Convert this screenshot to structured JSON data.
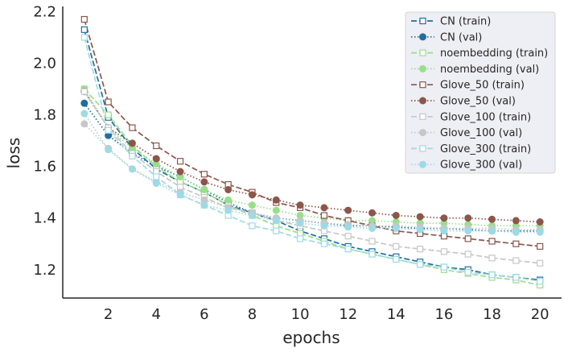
{
  "chart_data": {
    "type": "line",
    "xlabel": "epochs",
    "ylabel": "loss",
    "xlim": [
      0.1,
      20.9
    ],
    "ylim": [
      1.09,
      2.22
    ],
    "xticks": [
      2,
      4,
      6,
      8,
      10,
      12,
      14,
      16,
      18,
      20
    ],
    "yticks": [
      1.2,
      1.4,
      1.6,
      1.8,
      2.0,
      2.2
    ],
    "xtick_labels": [
      "2",
      "4",
      "6",
      "8",
      "10",
      "12",
      "14",
      "16",
      "18",
      "20"
    ],
    "ytick_labels": [
      "1.2",
      "1.4",
      "1.6",
      "1.8",
      "2.0",
      "2.2"
    ],
    "grid": false,
    "legend_position": "top-right",
    "x": [
      1,
      2,
      3,
      4,
      5,
      6,
      7,
      8,
      9,
      10,
      11,
      12,
      13,
      14,
      15,
      16,
      17,
      18,
      19,
      20
    ],
    "series": [
      {
        "name": "CN (train)",
        "color": "#1f6f9f",
        "linestyle": "dashed",
        "marker": "square-open",
        "values": [
          2.13,
          1.79,
          1.67,
          1.59,
          1.54,
          1.5,
          1.45,
          1.42,
          1.39,
          1.35,
          1.32,
          1.29,
          1.27,
          1.25,
          1.23,
          1.21,
          1.2,
          1.18,
          1.17,
          1.16
        ]
      },
      {
        "name": "CN (val)",
        "color": "#1f6f9f",
        "linestyle": "dotted",
        "marker": "circle",
        "values": [
          1.845,
          1.72,
          1.65,
          1.6,
          1.56,
          1.51,
          1.46,
          1.42,
          1.4,
          1.39,
          1.38,
          1.37,
          1.37,
          1.365,
          1.36,
          1.36,
          1.355,
          1.35,
          1.35,
          1.35
        ]
      },
      {
        "name": "noembedding (train)",
        "color": "#98df8a",
        "linestyle": "dashed",
        "marker": "square-open",
        "values": [
          1.9,
          1.8,
          1.68,
          1.6,
          1.54,
          1.5,
          1.45,
          1.41,
          1.37,
          1.34,
          1.31,
          1.28,
          1.26,
          1.24,
          1.22,
          1.2,
          1.185,
          1.17,
          1.16,
          1.14
        ]
      },
      {
        "name": "noembedding (val)",
        "color": "#98df8a",
        "linestyle": "dotted",
        "marker": "circle",
        "values": [
          1.9,
          1.75,
          1.67,
          1.61,
          1.56,
          1.51,
          1.47,
          1.45,
          1.43,
          1.41,
          1.4,
          1.39,
          1.39,
          1.385,
          1.38,
          1.38,
          1.375,
          1.37,
          1.37,
          1.37
        ]
      },
      {
        "name": "Glove_50 (train)",
        "color": "#8c564b",
        "linestyle": "dashed",
        "marker": "square-open",
        "values": [
          2.17,
          1.85,
          1.75,
          1.68,
          1.62,
          1.57,
          1.53,
          1.5,
          1.46,
          1.44,
          1.41,
          1.39,
          1.37,
          1.35,
          1.34,
          1.33,
          1.32,
          1.31,
          1.3,
          1.29
        ]
      },
      {
        "name": "Glove_50 (val)",
        "color": "#8c564b",
        "linestyle": "dotted",
        "marker": "circle",
        "values": [
          1.89,
          1.75,
          1.69,
          1.63,
          1.58,
          1.54,
          1.51,
          1.49,
          1.47,
          1.45,
          1.44,
          1.43,
          1.42,
          1.41,
          1.405,
          1.4,
          1.4,
          1.395,
          1.39,
          1.385
        ]
      },
      {
        "name": "Glove_100 (train)",
        "color": "#c7c7c7",
        "linestyle": "dashed",
        "marker": "square-open",
        "values": [
          1.89,
          1.75,
          1.65,
          1.58,
          1.52,
          1.48,
          1.44,
          1.42,
          1.39,
          1.37,
          1.35,
          1.33,
          1.31,
          1.29,
          1.28,
          1.27,
          1.26,
          1.245,
          1.235,
          1.225
        ]
      },
      {
        "name": "Glove_100 (val)",
        "color": "#c7c7c7",
        "linestyle": "dotted",
        "marker": "circle",
        "values": [
          1.765,
          1.67,
          1.59,
          1.54,
          1.5,
          1.47,
          1.44,
          1.42,
          1.4,
          1.39,
          1.38,
          1.375,
          1.37,
          1.37,
          1.365,
          1.36,
          1.36,
          1.36,
          1.355,
          1.355
        ]
      },
      {
        "name": "Glove_300 (train)",
        "color": "#9edae5",
        "linestyle": "dashed",
        "marker": "square-open",
        "values": [
          2.1,
          1.74,
          1.64,
          1.56,
          1.49,
          1.45,
          1.41,
          1.37,
          1.35,
          1.32,
          1.3,
          1.28,
          1.26,
          1.24,
          1.22,
          1.21,
          1.19,
          1.18,
          1.17,
          1.155
        ]
      },
      {
        "name": "Glove_300 (val)",
        "color": "#9edae5",
        "linestyle": "dotted",
        "marker": "circle",
        "values": [
          1.805,
          1.665,
          1.59,
          1.535,
          1.49,
          1.45,
          1.43,
          1.41,
          1.39,
          1.38,
          1.37,
          1.365,
          1.36,
          1.36,
          1.355,
          1.35,
          1.35,
          1.35,
          1.345,
          1.345
        ]
      }
    ]
  }
}
